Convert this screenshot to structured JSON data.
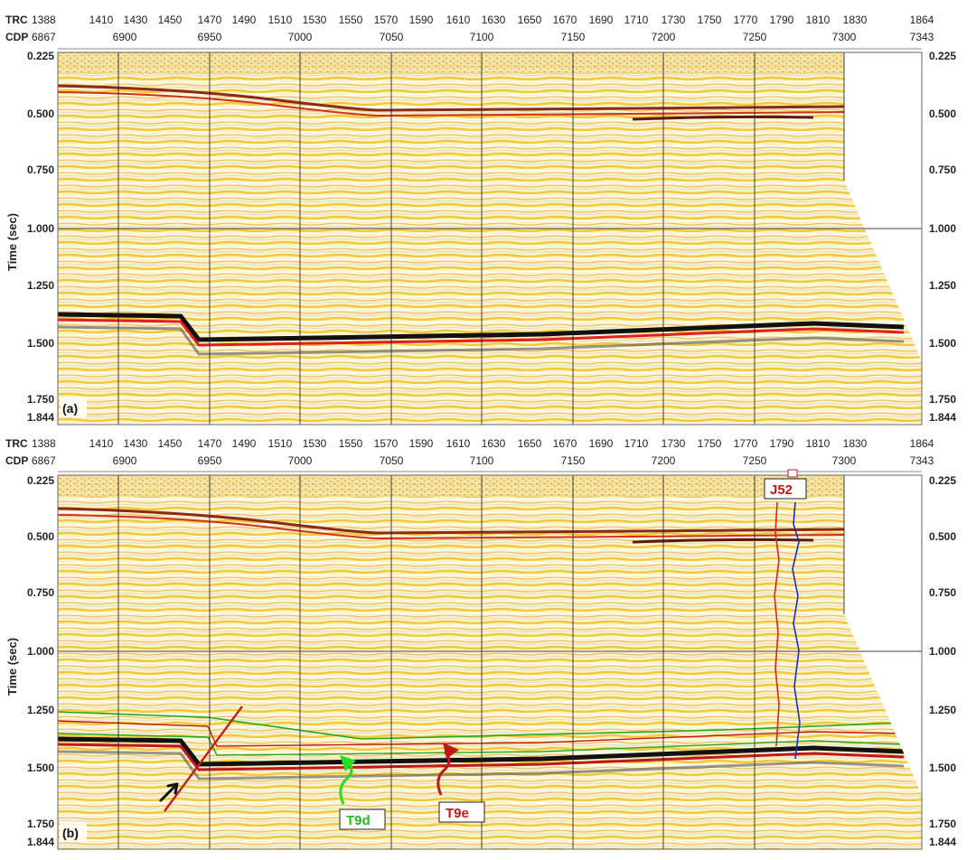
{
  "header": {
    "trc_label": "TRC",
    "cdp_label": "CDP",
    "trc_values": [
      "1388",
      "1410",
      "1430",
      "1450",
      "1470",
      "1490",
      "1510",
      "1530",
      "1550",
      "1570",
      "1590",
      "1610",
      "1630",
      "1650",
      "1670",
      "1690",
      "1710",
      "1730",
      "1750",
      "1770",
      "1790",
      "1810",
      "1830",
      "1864"
    ],
    "cdp_values": [
      "6867",
      "6900",
      "6950",
      "7000",
      "7050",
      "7100",
      "7150",
      "7200",
      "7250",
      "7300",
      "7343"
    ]
  },
  "axis": {
    "ylabel": "Time (sec)",
    "ticks": [
      "0.225",
      "0.500",
      "0.750",
      "1.000",
      "1.250",
      "1.500",
      "1.750",
      "1.844"
    ]
  },
  "panels": [
    {
      "tag": "(a)"
    },
    {
      "tag": "(b)"
    }
  ],
  "annotations": {
    "well": "J52",
    "horizon_green": "T9d",
    "horizon_red": "T9e"
  },
  "colors": {
    "seismic_yellow": "#f6d23a",
    "seismic_orange": "#e8a33c",
    "strong_reflector": "#111111",
    "red_reflector": "#e02020",
    "horizon_green": "#22aa22",
    "horizon_red": "#c01818",
    "well_log_blue": "#1a2fc0",
    "fault": "#c0201a"
  }
}
